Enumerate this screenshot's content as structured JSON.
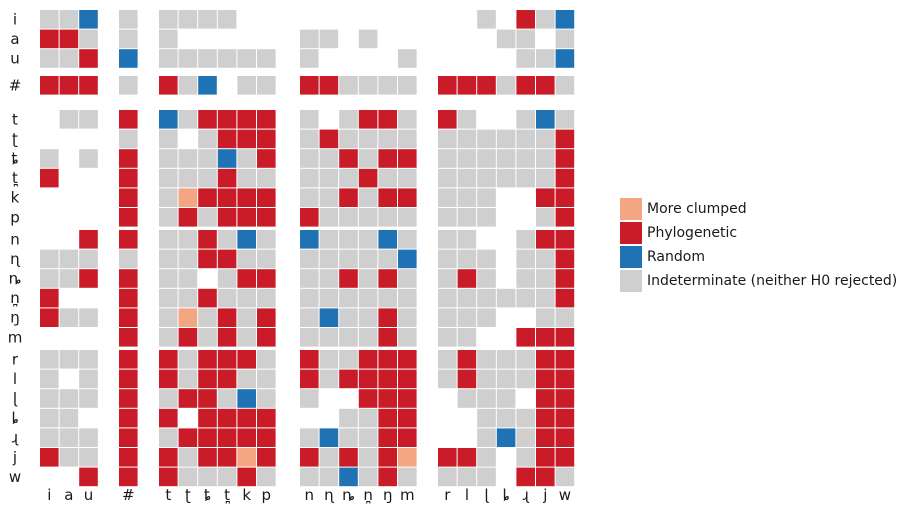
{
  "legend": [
    {
      "key": "C",
      "label": "More clumped",
      "color": "#f4a582"
    },
    {
      "key": "P",
      "label": "Phylogenetic",
      "color": "#ca1c28"
    },
    {
      "key": "R",
      "label": "Random",
      "color": "#1f72b4"
    },
    {
      "key": "I",
      "label": "Indeterminate (neither H0 rejected)",
      "color": "#cfcfcf"
    }
  ],
  "row_groups": [
    [
      "i",
      "a",
      "u"
    ],
    [
      "#"
    ],
    [
      "t",
      "ʈ",
      "ȶ",
      "t̪",
      "k",
      "p"
    ],
    [
      "n",
      "ɳ",
      "ȵ",
      "n̪",
      "ŋ",
      "m"
    ],
    [
      "r",
      "l",
      "ɭ",
      "ȴ",
      "ɻ",
      "j",
      "w"
    ]
  ],
  "col_groups": [
    [
      "i",
      "a",
      "u"
    ],
    [
      "#"
    ],
    [
      "t",
      "ʈ",
      "ȶ",
      "t̪",
      "k",
      "p"
    ],
    [
      "n",
      "ɳ",
      "ȵ",
      "n̪",
      "ŋ",
      "m"
    ],
    [
      "r",
      "l",
      "ɭ",
      "ȴ",
      "ɻ",
      "j",
      "w"
    ]
  ],
  "matrix": [
    [
      "IIR",
      "I",
      "IIII..",
      "......",
      "..I.PIR"
    ],
    [
      "PPI",
      "I",
      "I.....",
      "II.I..",
      "...II.I"
    ],
    [
      "IIP",
      "R",
      "IIIIII",
      "I....I",
      "....IIR"
    ],
    [
      "PPP",
      "I",
      "PIR.II",
      "PPIIII",
      "PPPIPPI"
    ],
    [
      ".II",
      "P",
      "RIPPPP",
      "I.IPPI",
      "PI..IRI"
    ],
    [
      "...",
      "I",
      "I.IPPP",
      "IPIIII",
      "IIIIIIP"
    ],
    [
      "I.I",
      "P",
      "IIIRIP",
      "IIPIPP",
      "IIIIIIP"
    ],
    [
      "P..",
      "P",
      "IIIPII",
      "IIIPII",
      "IIIIIIP"
    ],
    [
      "...",
      "P",
      "ICPPPP",
      "IIPIPP",
      "III..PP"
    ],
    [
      "...",
      "P",
      "IPIPPP",
      "PIIIII",
      "III..IP"
    ],
    [
      "..P",
      "P",
      "IIPIRI",
      "RIIIRI",
      "II..IPP"
    ],
    [
      "III",
      "I",
      "IIPPII",
      "IIIIIR",
      "III.IIP"
    ],
    [
      "IIP",
      "P",
      "II.IPP",
      "IIPIPI",
      "IPI.IIP"
    ],
    [
      "P..",
      "P",
      "IIPIII",
      "IIIIII",
      "IIIIIIP"
    ],
    [
      "PII",
      "P",
      "ICIPIP",
      "IRIIPI",
      "III..II"
    ],
    [
      "...",
      "P",
      "IPIPIP",
      "IIIIPI",
      "II..PPP"
    ],
    [
      "III",
      "P",
      "PIPPPI",
      "PIIPPP",
      "IPIIIPP"
    ],
    [
      "I.I",
      "P",
      "PIPPII",
      "PIPPPP",
      "IPIIIPP"
    ],
    [
      "III",
      "P",
      "IPPIRI",
      "I..PPP",
      ".III.PP"
    ],
    [
      "II.",
      "P",
      "P.PPPP",
      "..IIPP",
      "..IIIPP"
    ],
    [
      "III",
      "P",
      "IPPPPP",
      "IRIIPP",
      "..IRIPP"
    ],
    [
      "PII",
      "P",
      "PIPPCP",
      "PIPIPC",
      "PPI.IPP"
    ],
    [
      "..P",
      "P",
      "PIIIPI",
      "IIRIPI",
      "III.PPI"
    ]
  ]
}
